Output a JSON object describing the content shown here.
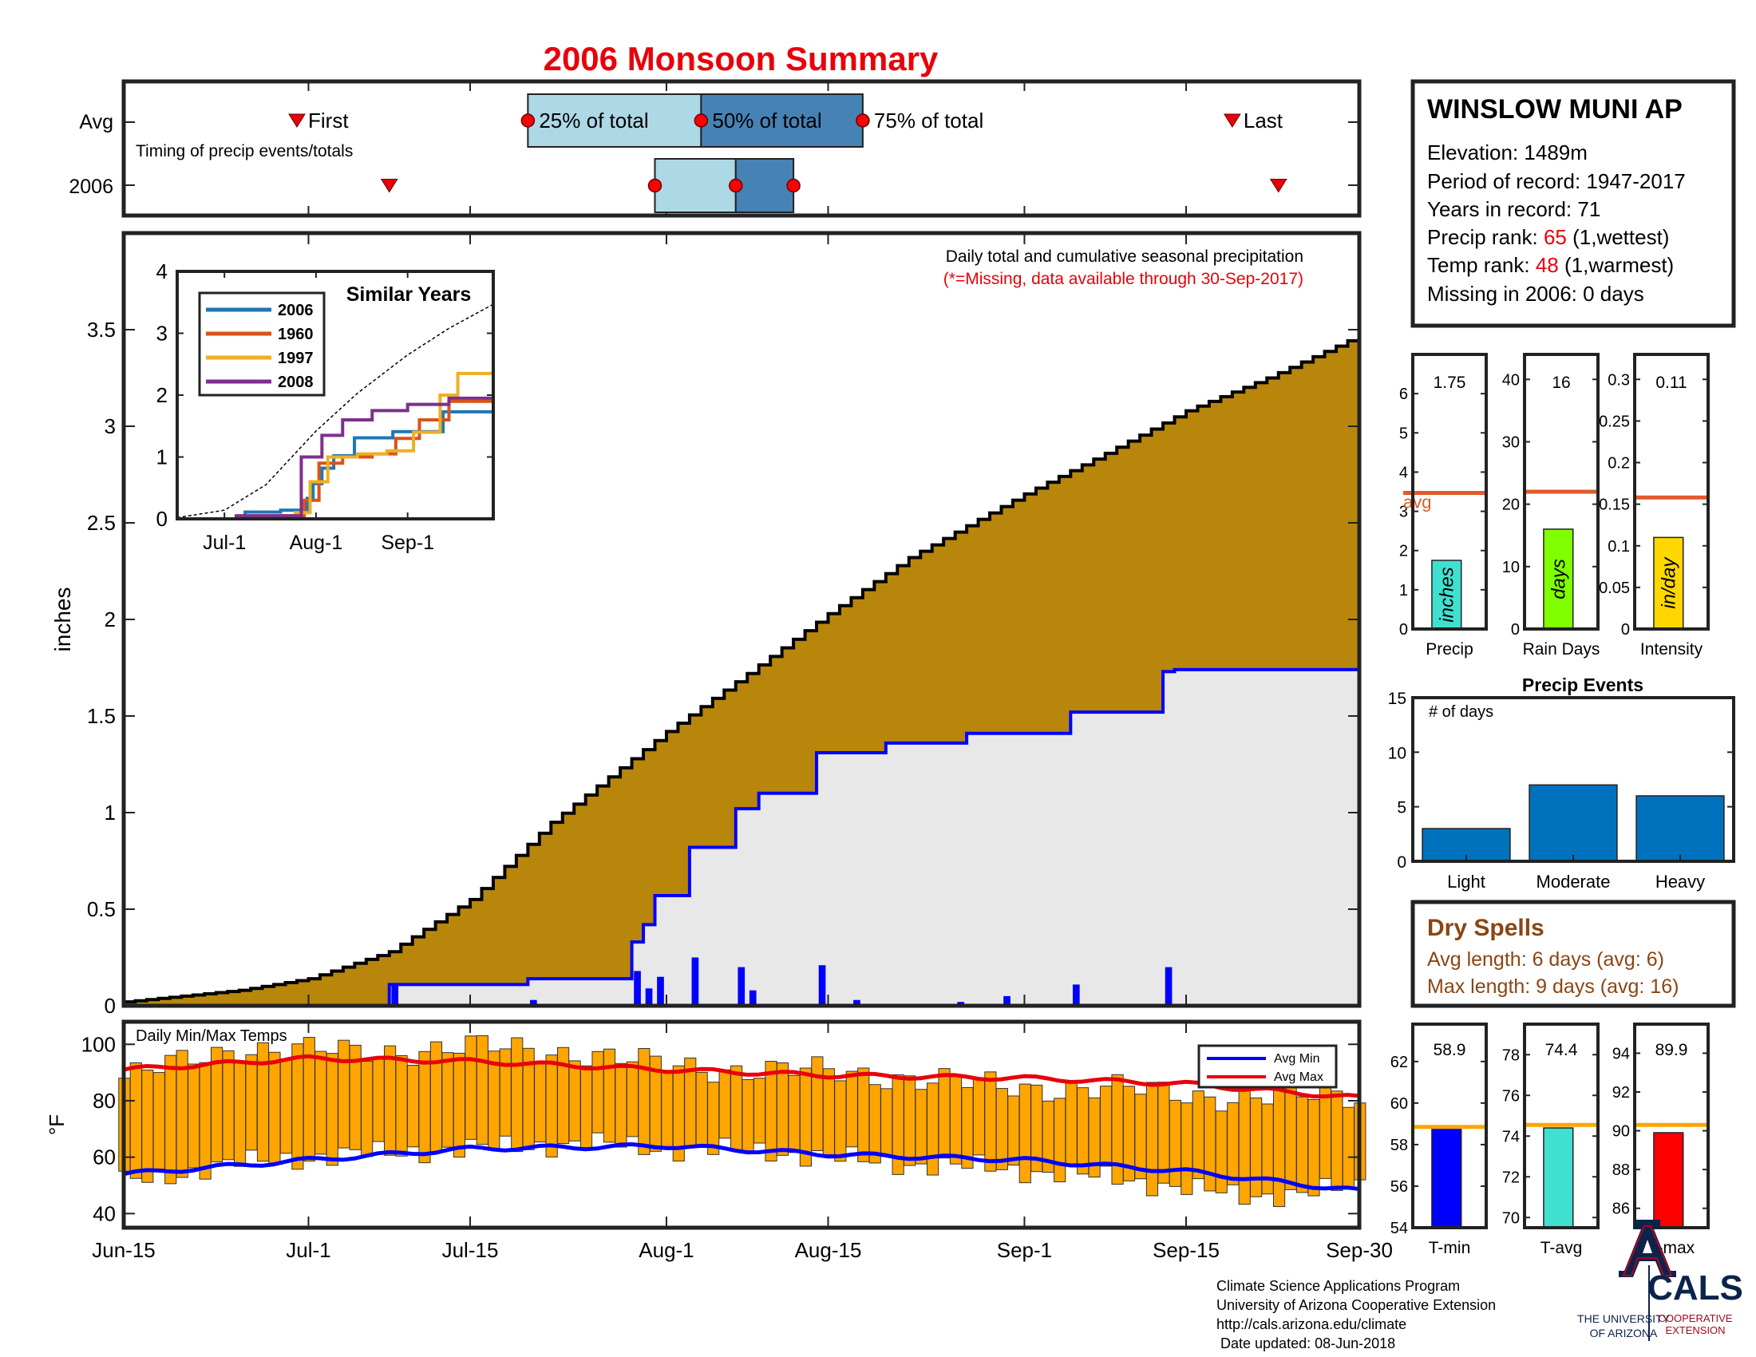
{
  "title": "2006 Monsoon Summary",
  "timing": {
    "row_labels": [
      "Avg",
      "2006"
    ],
    "caption": "Timing of precip events/totals",
    "avg": {
      "first": "Jun-30",
      "p25": "Jul-20",
      "p50": "Aug-4",
      "p75": "Aug-18",
      "last": "Sep-19",
      "labels": {
        "first": "First",
        "p25": "25% of total",
        "p50": "50% of total",
        "p75": "75% of total",
        "last": "Last"
      }
    },
    "y2006": {
      "first": "Jul-8",
      "p25": "Jul-31",
      "p50": "Aug-7",
      "p75": "Aug-12",
      "last": "Sep-23"
    }
  },
  "station": {
    "name": "WINSLOW MUNI AP",
    "elevation_label": "Elevation: 1489m",
    "period_label": "Period of record: 1947-2017",
    "years_label": "Years in record: 71",
    "precip_rank_prefix": "Precip rank: ",
    "precip_rank": "65",
    "precip_rank_suffix": " (1,wettest)",
    "temp_rank_prefix": "Temp rank: ",
    "temp_rank": "48",
    "temp_rank_suffix": " (1,warmest)",
    "missing_label": "Missing in 2006: 0 days"
  },
  "main_chart": {
    "annotation": "Daily total and cumulative seasonal precipitation",
    "annotation_red": "(*=Missing, data available through 30-Sep-2017)",
    "ylabel": "inches",
    "xtick_labels": [
      "Jun-15",
      "Jul-1",
      "Jul-15",
      "Aug-1",
      "Aug-15",
      "Sep-1",
      "Sep-15",
      "Sep-30"
    ],
    "xtick_days": [
      0,
      16,
      30,
      47,
      61,
      78,
      92,
      107
    ]
  },
  "chart_data": [
    {
      "type": "area",
      "id": "cumulative-precip",
      "ylabel": "inches",
      "ylim": [
        0,
        4
      ],
      "yticks": [
        0,
        0.5,
        1,
        1.5,
        2,
        2.5,
        3,
        3.5
      ],
      "x_start": "Jun-15",
      "x_end": "Sep-30",
      "avg_cumulative": {
        "x": [
          "Jun-15",
          "Jun-25",
          "Jul-1",
          "Jul-8",
          "Jul-15",
          "Jul-22",
          "Aug-1",
          "Aug-8",
          "Aug-15",
          "Aug-22",
          "Sep-1",
          "Sep-8",
          "Sep-15",
          "Sep-22",
          "Sep-30"
        ],
        "y": [
          0.02,
          0.08,
          0.14,
          0.28,
          0.55,
          0.95,
          1.42,
          1.72,
          2.03,
          2.32,
          2.65,
          2.86,
          3.08,
          3.25,
          3.47
        ]
      },
      "y2006_cumulative": {
        "x": [
          "Jun-15",
          "Jul-8",
          "Jul-15",
          "Jul-20",
          "Jul-29",
          "Jul-30",
          "Jul-31",
          "Aug-1",
          "Aug-3",
          "Aug-7",
          "Aug-9",
          "Aug-14",
          "Aug-20",
          "Aug-27",
          "Sep-5",
          "Sep-13",
          "Sep-14",
          "Sep-30"
        ],
        "y": [
          0.0,
          0.11,
          0.11,
          0.14,
          0.33,
          0.42,
          0.57,
          0.57,
          0.82,
          1.02,
          1.1,
          1.31,
          1.36,
          1.41,
          1.52,
          1.73,
          1.74,
          1.75
        ]
      },
      "y2006_daily": {
        "x": [
          "Jul-8",
          "Jul-20",
          "Jul-29",
          "Jul-30",
          "Jul-31",
          "Aug-3",
          "Aug-7",
          "Aug-8",
          "Aug-14",
          "Aug-17",
          "Aug-26",
          "Aug-30",
          "Sep-5",
          "Sep-13"
        ],
        "y": [
          0.11,
          0.03,
          0.18,
          0.09,
          0.15,
          0.25,
          0.2,
          0.08,
          0.21,
          0.03,
          0.02,
          0.05,
          0.11,
          0.2
        ]
      }
    },
    {
      "type": "line",
      "id": "similar-years",
      "title": "Similar Years",
      "ylim": [
        0,
        4
      ],
      "yticks": [
        0,
        1,
        2,
        3,
        4
      ],
      "xtick_labels": [
        "Jul-1",
        "Aug-1",
        "Sep-1"
      ],
      "series": [
        {
          "name": "2006",
          "color": "#1f77b4",
          "x": [
            "Jun-15",
            "Jul-8",
            "Jul-20",
            "Jul-29",
            "Jul-31",
            "Aug-3",
            "Aug-7",
            "Aug-14",
            "Aug-27",
            "Sep-13",
            "Sep-30"
          ],
          "y": [
            0,
            0.11,
            0.14,
            0.33,
            0.57,
            0.82,
            1.02,
            1.31,
            1.41,
            1.73,
            1.75
          ]
        },
        {
          "name": "1960",
          "color": "#d95319",
          "x": [
            "Jun-15",
            "Jul-20",
            "Jul-28",
            "Aug-2",
            "Aug-10",
            "Aug-20",
            "Aug-28",
            "Sep-5",
            "Sep-15",
            "Sep-30"
          ],
          "y": [
            0,
            0.05,
            0.3,
            0.9,
            1.0,
            1.05,
            1.3,
            1.6,
            1.9,
            2.0
          ]
        },
        {
          "name": "1997",
          "color": "#edb120",
          "x": [
            "Jun-15",
            "Jul-25",
            "Jul-30",
            "Aug-5",
            "Aug-15",
            "Aug-25",
            "Sep-3",
            "Sep-12",
            "Sep-18",
            "Sep-30"
          ],
          "y": [
            0,
            0.1,
            0.6,
            1.0,
            1.05,
            1.1,
            1.4,
            2.0,
            2.35,
            2.4
          ]
        },
        {
          "name": "2008",
          "color": "#7e2f8e",
          "x": [
            "Jun-15",
            "Jul-5",
            "Jul-27",
            "Aug-3",
            "Aug-10",
            "Aug-20",
            "Sep-1",
            "Sep-15",
            "Sep-30"
          ],
          "y": [
            0,
            0.05,
            1.0,
            1.35,
            1.6,
            1.75,
            1.85,
            1.95,
            1.95
          ]
        },
        {
          "name": "avg",
          "color": "#000000",
          "x": [
            "Jun-15",
            "Jul-1",
            "Jul-15",
            "Aug-1",
            "Aug-15",
            "Sep-1",
            "Sep-15",
            "Sep-30"
          ],
          "y": [
            0.02,
            0.14,
            0.55,
            1.42,
            2.03,
            2.65,
            3.08,
            3.47
          ]
        }
      ]
    },
    {
      "type": "bar",
      "id": "daily-temps",
      "title": "Daily Min/Max Temps",
      "ylabel": "°F",
      "ylim": [
        35,
        108
      ],
      "yticks": [
        40,
        60,
        80,
        100
      ],
      "legend": {
        "avg_min": "Avg Min",
        "avg_max": "Avg Max",
        "placement": "top-right"
      },
      "avg_max": {
        "x": [
          "Jun-15",
          "Jul-1",
          "Jul-15",
          "Aug-1",
          "Aug-15",
          "Sep-1",
          "Sep-15",
          "Sep-30"
        ],
        "y": [
          91,
          95,
          94,
          91,
          89,
          88,
          86,
          81
        ]
      },
      "avg_min": {
        "x": [
          "Jun-15",
          "Jul-1",
          "Jul-15",
          "Aug-1",
          "Aug-15",
          "Sep-1",
          "Sep-15",
          "Sep-30"
        ],
        "y": [
          54,
          59,
          63,
          64,
          61,
          59,
          55,
          48
        ]
      },
      "tmax_ctrl": {
        "x": [
          "Jun-15",
          "Jun-25",
          "Jul-5",
          "Jul-15",
          "Jul-25",
          "Aug-1",
          "Aug-10",
          "Aug-20",
          "Aug-30",
          "Sep-10",
          "Sep-20",
          "Sep-30"
        ],
        "y": [
          88,
          99,
          97,
          99,
          97,
          92,
          91,
          89,
          85,
          84,
          81,
          82
        ]
      },
      "tmin_ctrl": {
        "x": [
          "Jun-15",
          "Jun-25",
          "Jul-5",
          "Jul-15",
          "Jul-25",
          "Aug-1",
          "Aug-10",
          "Aug-20",
          "Aug-30",
          "Sep-10",
          "Sep-20",
          "Sep-30"
        ],
        "y": [
          51,
          58,
          61,
          63,
          65,
          63,
          62,
          58,
          56,
          52,
          46,
          49
        ]
      }
    },
    {
      "type": "bar",
      "id": "precip-stats",
      "panels": [
        {
          "label": "Precip",
          "value": 1.75,
          "value_label": "1.75",
          "avg": 3.47,
          "avg_label": "avg",
          "unit": "inches",
          "color": "#40e0d0",
          "ylim": [
            0,
            7
          ],
          "yticks": [
            0,
            1,
            2,
            3,
            4,
            5,
            6
          ]
        },
        {
          "label": "Rain Days",
          "value": 16,
          "value_label": "16",
          "avg": 22,
          "unit": "days",
          "color": "#80ff00",
          "ylim": [
            0,
            44
          ],
          "yticks": [
            0,
            10,
            20,
            30,
            40
          ]
        },
        {
          "label": "Intensity",
          "value": 0.11,
          "value_label": "0.11",
          "avg": 0.158,
          "unit": "in/day",
          "color": "#ffd700",
          "ylim": [
            0,
            0.33
          ],
          "yticks": [
            0,
            0.05,
            0.1,
            0.15,
            0.2,
            0.25,
            0.3
          ],
          "ytick_labels": [
            "0",
            "0.05",
            "0.1",
            "0.15",
            "0.2",
            "0.25",
            "0.3"
          ]
        }
      ]
    },
    {
      "type": "bar",
      "id": "precip-events",
      "title": "Precip Events",
      "annotation": "# of days",
      "categories": [
        "Light",
        "Moderate",
        "Heavy"
      ],
      "values": [
        3,
        7,
        6
      ],
      "ylim": [
        0,
        15
      ],
      "yticks": [
        0,
        5,
        10,
        15
      ],
      "color": "#0072bd"
    },
    {
      "type": "bar",
      "id": "temp-stats",
      "panels": [
        {
          "label": "T-min",
          "value": 58.9,
          "value_label": "58.9",
          "avg": 58.85,
          "color": "#0000ff",
          "ylim": [
            54,
            63.8
          ],
          "yticks": [
            54,
            56,
            58,
            60,
            62
          ]
        },
        {
          "label": "T-avg",
          "value": 74.4,
          "value_label": "74.4",
          "avg": 74.55,
          "color": "#40e0d0",
          "ylim": [
            69.5,
            79.5
          ],
          "yticks": [
            70,
            72,
            74,
            76,
            78
          ]
        },
        {
          "label": "T-max",
          "value": 89.9,
          "value_label": "89.9",
          "avg": 90.3,
          "color": "#ff0000",
          "ylim": [
            85,
            95.5
          ],
          "yticks": [
            86,
            88,
            90,
            92,
            94
          ]
        }
      ]
    }
  ],
  "dry_spells": {
    "title": "Dry Spells",
    "avg_length": "Avg length: 6 days (avg: 6)",
    "max_length": "Max length: 9 days (avg: 16)"
  },
  "footer": {
    "lines": [
      "Climate Science Applications Program",
      "University of Arizona Cooperative Extension",
      "http://cals.arizona.edu/climate",
      " Date updated: 08-Jun-2018"
    ],
    "ua_logo_lines": [
      "THE UNIVERSITY",
      "OF ARIZONA"
    ],
    "cals_logo": "CALS",
    "cals_sub": [
      "COOPERATIVE",
      "EXTENSION"
    ]
  },
  "colors": {
    "title": "#e8000b",
    "cum_fill": "#b8860b",
    "y2006_fill": "#e8e8e8",
    "blue": "#0000ff",
    "orange_bar": "#ffa500",
    "dry_spells": "#8b4513",
    "avg_line": "#e05a2a",
    "ua_navy": "#0c234b",
    "ua_red": "#ab0520"
  }
}
